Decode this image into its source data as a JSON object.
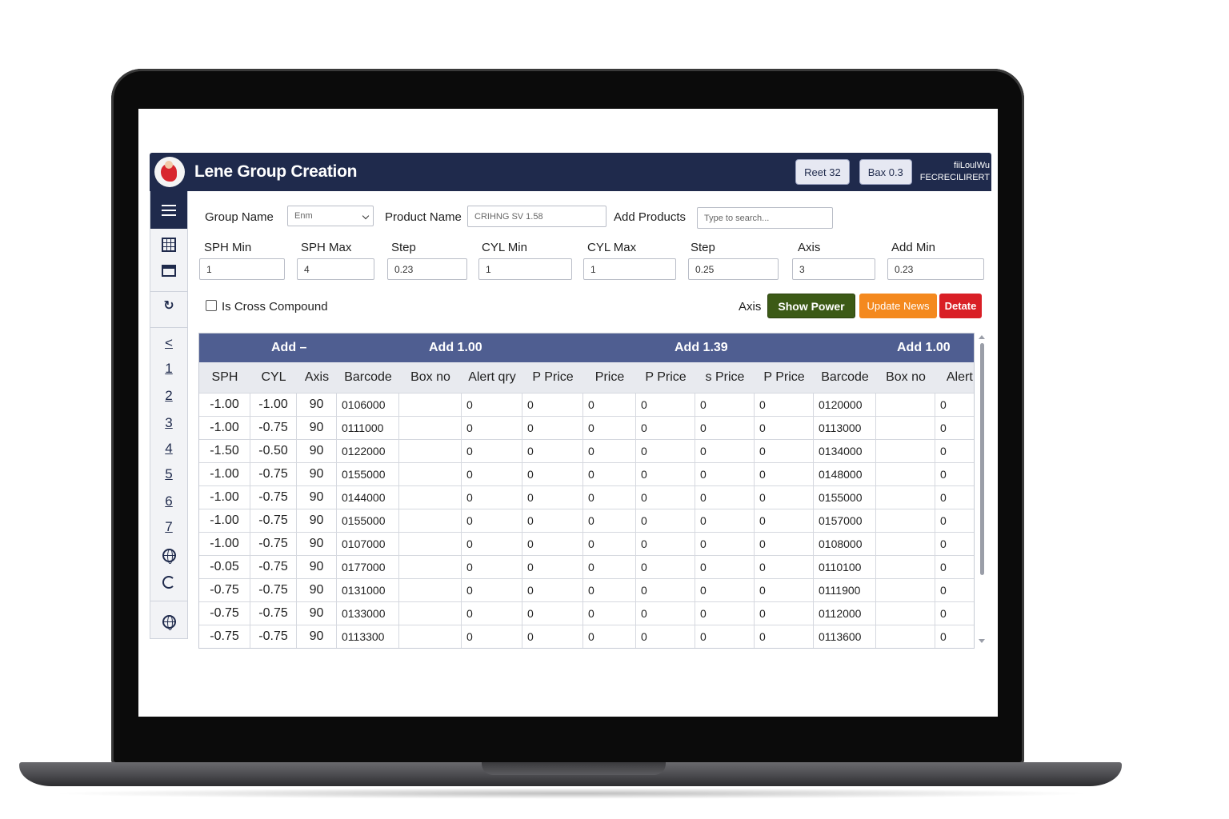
{
  "header": {
    "title": "Lene Group Creation",
    "btn_reset": "Reet 32",
    "btn_box": "Bax 0.3",
    "user_line1": "fiiLoulWu",
    "user_line2": "FECRECILIRERT"
  },
  "sidebar": {
    "items": [
      "<",
      "1",
      "2",
      "3",
      "4",
      "5",
      "6",
      "7"
    ]
  },
  "form": {
    "group_name_label": "Group Name",
    "group_name_value": "Enm",
    "product_name_label": "Product Name",
    "product_name_value": "CRIHNG SV 1.58",
    "add_products_label": "Add Products",
    "add_products_placeholder": "Type to search...",
    "fields": [
      {
        "label": "SPH Min",
        "value": "1"
      },
      {
        "label": "SPH Max",
        "value": "4"
      },
      {
        "label": "Step",
        "value": "0.23"
      },
      {
        "label": "CYL Min",
        "value": "1"
      },
      {
        "label": "CYL Max",
        "value": "1"
      },
      {
        "label": "Step",
        "value": "0.25"
      },
      {
        "label": "Axis",
        "value": "3"
      },
      {
        "label": "Add Min",
        "value": "0.23"
      }
    ],
    "cross_compound_label": "Is Cross Compound",
    "axis_label": "Axis",
    "show_power": "Show Power",
    "update_news": "Update News",
    "delete": "Detate"
  },
  "colors": {
    "navy": "#1f2a4c",
    "group_header": "#4f5e91",
    "show_power": "#3c5a16",
    "update": "#f4891e",
    "delete": "#d91f26"
  },
  "table": {
    "groups": [
      "Add –",
      "Add 1.00",
      "Add 1.39",
      "Add 1.00"
    ],
    "columns": [
      "SPH",
      "CYL",
      "Axis",
      "Barcode",
      "Box no",
      "Alert qry",
      "P Price",
      "Price",
      "P Price",
      "s Price",
      "P Price",
      "Barcode",
      "Box no",
      "Alert q"
    ],
    "rows": [
      [
        "-1.00",
        "-1.00",
        "90",
        "0106000",
        "",
        "0",
        "0",
        "0",
        "0",
        "0",
        "0",
        "0120000",
        "",
        "0"
      ],
      [
        "-1.00",
        "-0.75",
        "90",
        "0111000",
        "",
        "0",
        "0",
        "0",
        "0",
        "0",
        "0",
        "0113000",
        "",
        "0"
      ],
      [
        "-1.50",
        "-0.50",
        "90",
        "0122000",
        "",
        "0",
        "0",
        "0",
        "0",
        "0",
        "0",
        "0134000",
        "",
        "0"
      ],
      [
        "-1.00",
        "-0.75",
        "90",
        "0155000",
        "",
        "0",
        "0",
        "0",
        "0",
        "0",
        "0",
        "0148000",
        "",
        "0"
      ],
      [
        "-1.00",
        "-0.75",
        "90",
        "0144000",
        "",
        "0",
        "0",
        "0",
        "0",
        "0",
        "0",
        "0155000",
        "",
        "0"
      ],
      [
        "-1.00",
        "-0.75",
        "90",
        "0155000",
        "",
        "0",
        "0",
        "0",
        "0",
        "0",
        "0",
        "0157000",
        "",
        "0"
      ],
      [
        "-1.00",
        "-0.75",
        "90",
        "0107000",
        "",
        "0",
        "0",
        "0",
        "0",
        "0",
        "0",
        "0108000",
        "",
        "0"
      ],
      [
        "-0.05",
        "-0.75",
        "90",
        "0177000",
        "",
        "0",
        "0",
        "0",
        "0",
        "0",
        "0",
        "0110100",
        "",
        "0"
      ],
      [
        "-0.75",
        "-0.75",
        "90",
        "0131000",
        "",
        "0",
        "0",
        "0",
        "0",
        "0",
        "0",
        "0111900",
        "",
        "0"
      ],
      [
        "-0.75",
        "-0.75",
        "90",
        "0133000",
        "",
        "0",
        "0",
        "0",
        "0",
        "0",
        "0",
        "0112000",
        "",
        "0"
      ],
      [
        "-0.75",
        "-0.75",
        "90",
        "0113300",
        "",
        "0",
        "0",
        "0",
        "0",
        "0",
        "0",
        "0113600",
        "",
        "0"
      ]
    ]
  }
}
